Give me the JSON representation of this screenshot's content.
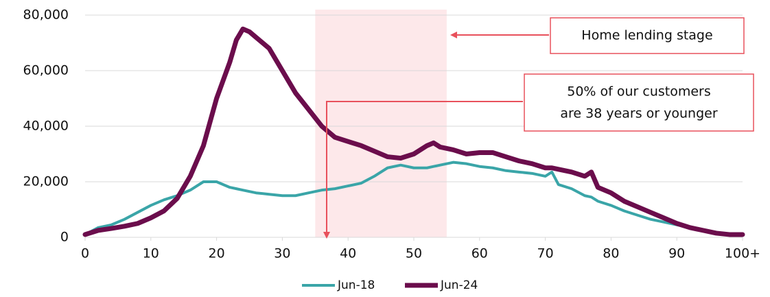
{
  "chart_data": {
    "type": "line",
    "x": [
      0,
      2,
      4,
      6,
      8,
      10,
      12,
      14,
      16,
      18,
      20,
      22,
      23,
      24,
      25,
      26,
      28,
      30,
      32,
      34,
      36,
      38,
      40,
      42,
      44,
      46,
      48,
      50,
      52,
      53,
      54,
      56,
      58,
      60,
      62,
      64,
      66,
      68,
      70,
      71,
      72,
      74,
      76,
      77,
      78,
      80,
      82,
      84,
      86,
      88,
      90,
      92,
      94,
      96,
      98,
      100
    ],
    "series": [
      {
        "name": "Jun-18",
        "color": "#3aa5a8",
        "values": [
          1000,
          3500,
          4500,
          6500,
          9000,
          11500,
          13500,
          15000,
          17000,
          20000,
          20000,
          18000,
          17500,
          17000,
          16500,
          16000,
          15500,
          15000,
          15000,
          16000,
          17000,
          17500,
          18500,
          19500,
          22000,
          25000,
          26000,
          25000,
          25000,
          25500,
          26000,
          27000,
          26500,
          25500,
          25000,
          24000,
          23500,
          23000,
          22000,
          23500,
          19000,
          17500,
          15000,
          14500,
          13000,
          11500,
          9500,
          8000,
          6500,
          5500,
          4500,
          3500,
          2500,
          1500,
          1000,
          1000
        ]
      },
      {
        "name": "Jun-24",
        "color": "#6b0d4c",
        "values": [
          1000,
          2500,
          3200,
          4000,
          5000,
          7000,
          9500,
          14000,
          22000,
          33000,
          50000,
          63000,
          71000,
          75000,
          74000,
          72000,
          68000,
          60000,
          52000,
          46000,
          40000,
          36000,
          34500,
          33000,
          31000,
          29000,
          28500,
          30000,
          33000,
          34000,
          32500,
          31500,
          30000,
          30500,
          30500,
          29000,
          27500,
          26500,
          25000,
          25000,
          24500,
          23500,
          22000,
          23500,
          18000,
          16000,
          13000,
          11000,
          9000,
          7000,
          5000,
          3500,
          2500,
          1500,
          1000,
          1000
        ]
      }
    ],
    "xlim": [
      0,
      100
    ],
    "xticks": [
      0,
      10,
      20,
      30,
      40,
      50,
      60,
      70,
      80,
      90,
      {
        "value": 100,
        "label": "100+"
      }
    ],
    "ylim": [
      0,
      80000
    ],
    "yticks": [
      {
        "value": 0,
        "label": "0"
      },
      {
        "value": 20000,
        "label": "20,000"
      },
      {
        "value": 40000,
        "label": "40,000"
      },
      {
        "value": 60000,
        "label": "60,000"
      },
      {
        "value": 80000,
        "label": "80,000"
      }
    ],
    "grid": true,
    "legend": "bottom",
    "highlight": {
      "x": [
        35,
        55
      ],
      "color": "#fde8ea"
    },
    "annotations": [
      {
        "lines": [
          "Home lending stage"
        ]
      },
      {
        "lines": [
          "50% of our customers",
          "are 38 years or younger"
        ]
      }
    ]
  }
}
